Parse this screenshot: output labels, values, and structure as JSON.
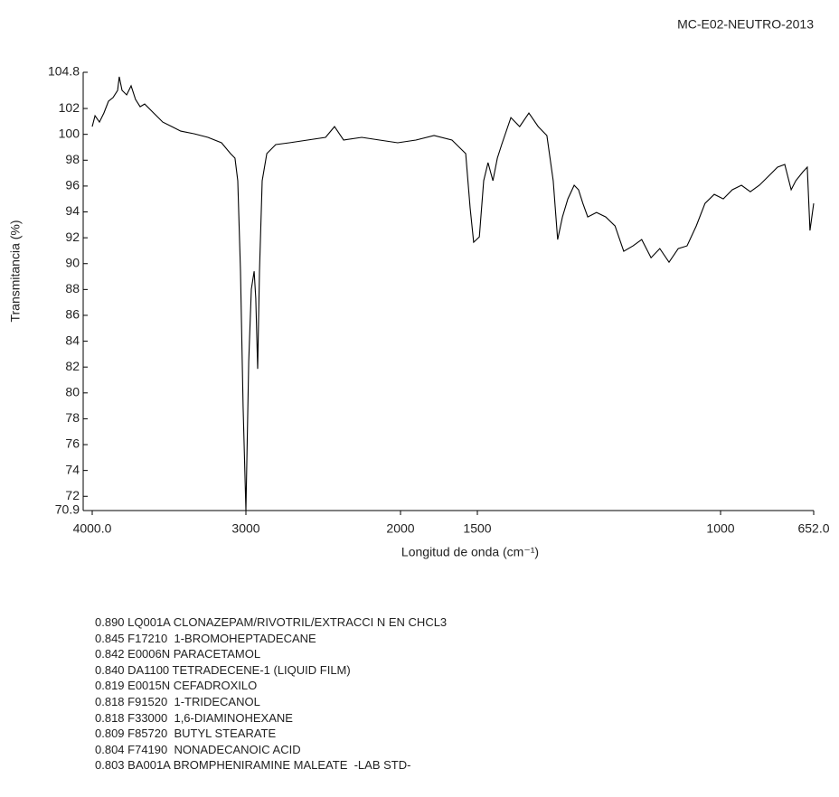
{
  "chart_data": {
    "type": "line",
    "title": "MC-E02-NEUTRO-2013",
    "x_label": "Longitud de onda (cm⁻¹)",
    "y_label": "Transmitancia (%)",
    "color": "#000000",
    "xlim": [
      4000,
      652
    ],
    "xticks": [
      {
        "value": 4000,
        "label": "4000.0"
      },
      3000,
      2000,
      1500,
      1000,
      {
        "value": 652,
        "label": "652.0"
      }
    ],
    "ylim": [
      70.9,
      104.8
    ],
    "yticks": [
      104.8,
      102,
      100,
      98,
      96,
      94,
      92,
      90,
      88,
      86,
      84,
      82,
      80,
      78,
      76,
      74,
      72,
      70.9
    ],
    "x": [
      4000,
      3982,
      3953,
      3924,
      3894,
      3865,
      3835,
      3824,
      3806,
      3776,
      3747,
      3718,
      3688,
      3659,
      3600,
      3541,
      3482,
      3424,
      3335,
      3247,
      3159,
      3100,
      3071,
      3053,
      3035,
      3018,
      3000,
      2982,
      2965,
      2947,
      2936,
      2924,
      2912,
      2895,
      2865,
      2807,
      2719,
      2602,
      2485,
      2427,
      2368,
      2251,
      2135,
      2018,
      1900,
      1782,
      1665,
      1576,
      1547,
      1524,
      1496,
      1487,
      1478,
      1468,
      1459,
      1450,
      1431,
      1413,
      1394,
      1375,
      1357,
      1344,
      1335,
      1325,
      1314,
      1301,
      1292,
      1283,
      1273,
      1255,
      1236,
      1217,
      1199,
      1180,
      1162,
      1143,
      1125,
      1106,
      1087,
      1069,
      1050,
      1032,
      1013,
      990,
      956,
      922,
      889,
      855,
      821,
      787,
      760,
      736,
      719,
      692,
      676,
      666,
      652
    ],
    "values": [
      100.6,
      101.44,
      100.95,
      101.65,
      102.56,
      102.84,
      103.4,
      104.45,
      103.4,
      103.05,
      103.75,
      102.7,
      102.14,
      102.35,
      101.65,
      100.95,
      100.6,
      100.25,
      100.04,
      99.77,
      99.35,
      98.51,
      98.16,
      96.41,
      89.41,
      78.93,
      70.9,
      82.42,
      88.02,
      89.41,
      87.32,
      81.86,
      89.41,
      96.41,
      98.51,
      99.21,
      99.35,
      99.56,
      99.77,
      100.6,
      99.56,
      99.77,
      99.56,
      99.35,
      99.56,
      99.91,
      99.56,
      98.51,
      94.31,
      91.65,
      92.07,
      96.41,
      97.81,
      96.41,
      98.16,
      99.21,
      101.3,
      100.6,
      101.65,
      100.6,
      99.91,
      96.41,
      91.86,
      93.61,
      95.01,
      96.06,
      95.71,
      94.66,
      93.61,
      93.96,
      93.61,
      92.91,
      90.95,
      91.37,
      91.86,
      90.46,
      91.16,
      90.11,
      91.16,
      91.37,
      92.91,
      94.66,
      95.36,
      95.01,
      95.71,
      96.06,
      95.56,
      96.06,
      96.76,
      97.46,
      97.67,
      95.71,
      96.41,
      97.11,
      97.46,
      92.56,
      94.66
    ]
  },
  "matches": [
    "0.890 LQ001A CLONAZEPAM/RIVOTRIL/EXTRACCI N EN CHCL3",
    "0.845 F17210  1-BROMOHEPTADECANE",
    "0.842 E0006N PARACETAMOL",
    "0.840 DA1100 TETRADECENE-1 (LIQUID FILM)",
    "0.819 E0015N CEFADROXILO",
    "0.818 F91520  1-TRIDECANOL",
    "0.818 F33000  1,6-DIAMINOHEXANE",
    "0.809 F85720  BUTYL STEARATE",
    "0.804 F74190  NONADECANOIC ACID",
    "0.803 BA001A BROMPHENIRAMINE MALEATE  -LAB STD-"
  ]
}
